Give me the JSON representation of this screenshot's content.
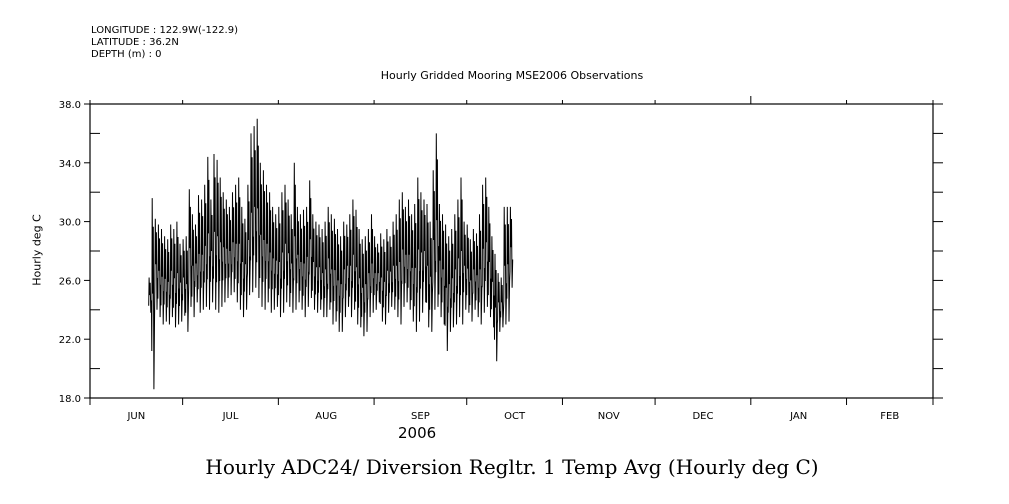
{
  "header": {
    "longitude": "LONGITUDE : 122.9W(-122.9)",
    "latitude": "LATITUDE : 36.2N",
    "depth": "DEPTH (m) : 0"
  },
  "chart_data": {
    "type": "line",
    "title": "Hourly ADC24/ Diversion Regltr. 1 Temp Avg (Hourly deg C)",
    "subtitle": "Hourly Gridded Mooring MSE2006 Observations",
    "xlabel": "2006",
    "ylabel": "Hourly deg C",
    "ylim": [
      18,
      38
    ],
    "yticks": [
      "18.0",
      "22.0",
      "26.0",
      "30.0",
      "34.0",
      "38.0"
    ],
    "ytick_values": [
      18,
      22,
      26,
      30,
      34,
      38
    ],
    "xtick_labels": [
      "JUN",
      "JUL",
      "AUG",
      "SEP",
      "OCT",
      "NOV",
      "DEC",
      "JAN",
      "FEB"
    ],
    "x_start": "2006-06-01",
    "x_end": "2007-02-28",
    "grid": false,
    "series": [
      {
        "name": "Temp Avg",
        "start_day": "2006-06-20",
        "daily_min": [
          23.8,
          18.6,
          24.0,
          23.5,
          23.0,
          23.2,
          23.0,
          23.5,
          22.8,
          23.0,
          23.2,
          23.6,
          22.5,
          24.2,
          23.5,
          24.5,
          23.8,
          24.0,
          24.2,
          24.0,
          24.5,
          24.0,
          23.8,
          24.2,
          24.5,
          24.8,
          25.0,
          25.2,
          24.5,
          24.0,
          23.5,
          24.0,
          25.0,
          25.2,
          25.5,
          24.8,
          24.2,
          24.0,
          24.5,
          23.8,
          24.0,
          24.2,
          23.5,
          23.8,
          24.5,
          24.2,
          23.8,
          24.0,
          24.5,
          24.0,
          23.5,
          24.2,
          24.8,
          24.0,
          23.8,
          24.0,
          23.5,
          23.5,
          24.0,
          23.0,
          23.2,
          22.5,
          22.5,
          23.5,
          24.2,
          23.5,
          24.0,
          23.0,
          22.8,
          22.2,
          22.5,
          23.5,
          23.8,
          24.0,
          24.5,
          23.2,
          23.0,
          23.8,
          24.2,
          24.0,
          23.5,
          23.0,
          24.2,
          24.5,
          24.0,
          23.2,
          22.5,
          23.2,
          23.8,
          24.5,
          22.8,
          22.5,
          24.0,
          24.2,
          23.5,
          23.0,
          21.2,
          22.5,
          22.8,
          23.0,
          23.5,
          23.0,
          24.0,
          23.8,
          23.2,
          24.0,
          23.5,
          23.0,
          23.8,
          24.2,
          23.5,
          22.8,
          20.5,
          22.5,
          22.8,
          23.0,
          23.2,
          25.5
        ],
        "daily_max": [
          26.2,
          31.6,
          30.2,
          29.8,
          29.5,
          29.0,
          28.8,
          29.8,
          29.5,
          30.0,
          28.5,
          28.8,
          29.0,
          32.2,
          30.5,
          29.8,
          31.8,
          31.5,
          32.5,
          34.4,
          31.5,
          34.6,
          34.2,
          33.0,
          32.0,
          31.5,
          31.0,
          32.0,
          32.5,
          33.0,
          31.0,
          30.2,
          32.5,
          36.0,
          36.5,
          37.0,
          34.0,
          33.5,
          32.5,
          32.0,
          31.0,
          30.5,
          31.0,
          32.0,
          32.5,
          31.5,
          30.5,
          34.0,
          31.0,
          30.5,
          30.8,
          31.0,
          32.8,
          30.5,
          30.0,
          29.8,
          29.5,
          30.0,
          31.0,
          30.5,
          30.2,
          29.5,
          29.0,
          30.0,
          29.8,
          30.5,
          31.5,
          30.8,
          29.5,
          28.8,
          29.0,
          29.5,
          30.5,
          29.0,
          28.5,
          29.2,
          28.8,
          29.5,
          29.0,
          30.0,
          30.5,
          31.5,
          32.0,
          31.0,
          31.5,
          30.5,
          31.2,
          33.0,
          32.0,
          31.5,
          31.2,
          30.0,
          33.5,
          36.0,
          31.2,
          30.5,
          29.8,
          29.0,
          29.5,
          30.5,
          31.5,
          33.0,
          30.0,
          29.8,
          28.8,
          29.5,
          29.2,
          30.5,
          32.5,
          33.0,
          31.0,
          29.0,
          27.8,
          26.5,
          26.2,
          31.0,
          31.0,
          31.0
        ]
      }
    ]
  }
}
